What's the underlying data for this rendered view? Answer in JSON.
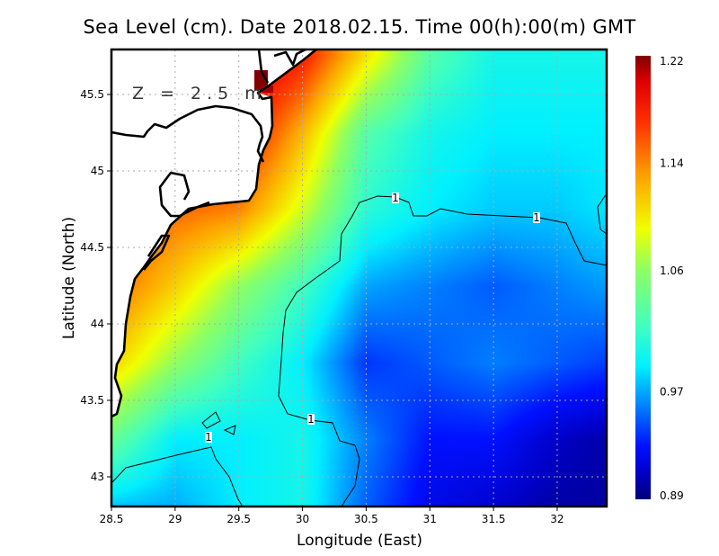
{
  "chart_data": {
    "type": "heatmap",
    "title": "Sea Level (cm). Date 2018.02.15. Time 00(h):00(m) GMT",
    "xlabel": "Longitude (East)",
    "ylabel": "Latitude (North)",
    "annotation": "Z = 2.5 m",
    "xlim": [
      28.5,
      32.4
    ],
    "ylim": [
      42.8,
      45.8
    ],
    "xticks": [
      "28.5",
      "29",
      "29.5",
      "30",
      "30.5",
      "31",
      "31.5",
      "32"
    ],
    "yticks": [
      "43",
      "43.5",
      "44",
      "44.5",
      "45",
      "45.5"
    ],
    "grid": true,
    "colorbar": {
      "range": [
        0.89,
        1.22
      ],
      "ticks": [
        "1.22",
        "1.14",
        "1.06",
        "0.97",
        "0.89"
      ],
      "placement": "right"
    },
    "contour_level": "1",
    "contour_labels": [
      "1",
      "1",
      "1",
      "1"
    ],
    "grid_lon": [
      28.5,
      29,
      29.5,
      30,
      30.5,
      31,
      31.5,
      32,
      32.5
    ],
    "grid_lat": [
      45.75,
      45.25,
      44.75,
      44.25,
      43.75,
      43.25,
      42.75
    ],
    "values": [
      [
        1.21,
        1.21,
        1.21,
        1.18,
        1.1,
        1.03,
        1.0,
        1.0,
        1.0
      ],
      [
        1.19,
        1.19,
        1.19,
        1.12,
        1.03,
        1.0,
        0.99,
        0.99,
        0.99
      ],
      [
        1.16,
        1.15,
        1.14,
        1.08,
        1.01,
        0.99,
        0.98,
        0.98,
        0.99
      ],
      [
        1.15,
        1.11,
        1.06,
        1.02,
        0.97,
        0.96,
        0.95,
        0.96,
        0.97
      ],
      [
        1.11,
        1.06,
        1.02,
        0.99,
        0.94,
        0.95,
        0.96,
        0.95,
        0.94
      ],
      [
        1.04,
        0.99,
        0.99,
        1.0,
        0.96,
        0.93,
        0.93,
        0.91,
        0.9
      ],
      [
        0.97,
        0.97,
        0.99,
        1.0,
        0.95,
        0.92,
        0.91,
        0.9,
        0.9
      ]
    ]
  }
}
